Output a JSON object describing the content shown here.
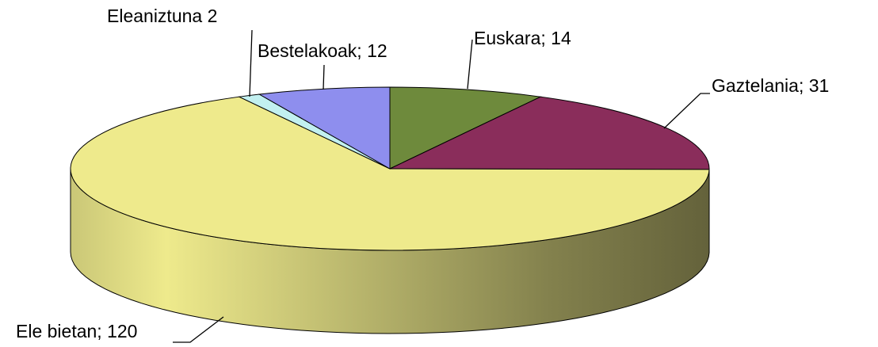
{
  "chart_data": {
    "type": "pie3d",
    "values": [
      14,
      31,
      120,
      2,
      12
    ],
    "value_labels": [
      "Euskara; 14",
      "Gaztelania; 31",
      "Ele bietan; 120",
      "Eleaniztuna 2",
      "Bestelakoak; 12"
    ],
    "colors": [
      "#6e8a3c",
      "#8a2d5b",
      "#eeea8c",
      "#c2f0f0",
      "#8e8eee"
    ]
  }
}
